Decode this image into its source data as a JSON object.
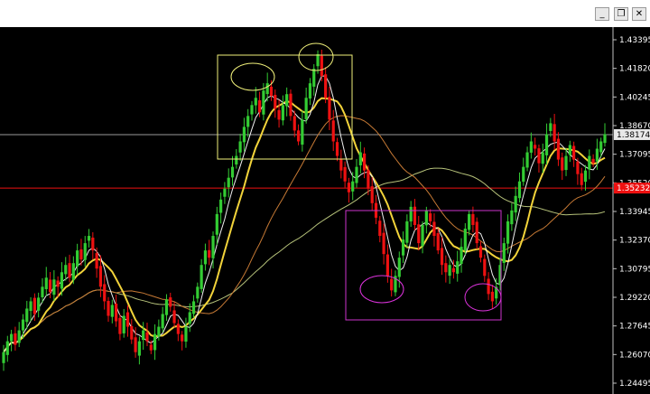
{
  "window": {
    "minimize_label": "_",
    "restore_label": "❐",
    "close_label": "✕"
  },
  "colors": {
    "background": "#000000",
    "bull": "#33cc33",
    "bear": "#ee1111",
    "ma_fast": "#f0f0f0",
    "ma_mid": "#f2d33a",
    "ma_slow": "#c77a35",
    "ma_long": "#b6c27a",
    "box_top": "#f0f07a",
    "box_bottom": "#cc33cc",
    "hline_current": "#9a9a9a",
    "hline_red": "#ee1111",
    "axis": "#c0c0c0",
    "ellipse_top": "#f0f07a",
    "ellipse_bottom": "#dd33dd"
  },
  "chart_data": {
    "type": "candlestick",
    "y_axis_ticks": [
      "1.43395",
      "1.41820",
      "1.40245",
      "1.38670",
      "1.37095",
      "1.35520",
      "1.33945",
      "1.32370",
      "1.30795",
      "1.29220",
      "1.27645",
      "1.26070",
      "1.24495"
    ],
    "ylim": [
      1.24495,
      1.43395
    ],
    "current_price": "1.38174",
    "current_price_value": 1.38174,
    "red_level": "1.35232",
    "red_level_value": 1.35232,
    "closes": [
      1.262,
      1.268,
      1.272,
      1.266,
      1.274,
      1.28,
      1.286,
      1.29,
      1.283,
      1.292,
      1.298,
      1.303,
      1.295,
      1.302,
      1.298,
      1.306,
      1.31,
      1.303,
      1.311,
      1.318,
      1.313,
      1.322,
      1.326,
      1.318,
      1.308,
      1.298,
      1.29,
      1.282,
      1.288,
      1.279,
      1.272,
      1.282,
      1.276,
      1.269,
      1.262,
      1.268,
      1.274,
      1.268,
      1.263,
      1.272,
      1.276,
      1.283,
      1.291,
      1.287,
      1.278,
      1.272,
      1.268,
      1.276,
      1.284,
      1.29,
      1.298,
      1.31,
      1.318,
      1.314,
      1.326,
      1.338,
      1.346,
      1.352,
      1.358,
      1.364,
      1.37,
      1.378,
      1.386,
      1.392,
      1.398,
      1.402,
      1.394,
      1.406,
      1.41,
      1.403,
      1.396,
      1.39,
      1.398,
      1.404,
      1.392,
      1.384,
      1.378,
      1.39,
      1.402,
      1.41,
      1.418,
      1.426,
      1.414,
      1.402,
      1.39,
      1.378,
      1.37,
      1.362,
      1.356,
      1.35,
      1.356,
      1.364,
      1.372,
      1.362,
      1.352,
      1.344,
      1.336,
      1.326,
      1.316,
      1.304,
      1.296,
      1.304,
      1.314,
      1.324,
      1.334,
      1.342,
      1.332,
      1.322,
      1.332,
      1.34,
      1.334,
      1.326,
      1.318,
      1.31,
      1.306,
      1.31,
      1.306,
      1.312,
      1.32,
      1.33,
      1.338,
      1.332,
      1.322,
      1.314,
      1.304,
      1.294,
      1.29,
      1.298,
      1.31,
      1.322,
      1.334,
      1.34,
      1.348,
      1.356,
      1.364,
      1.372,
      1.378,
      1.374,
      1.366,
      1.372,
      1.382,
      1.388,
      1.378,
      1.368,
      1.362,
      1.37,
      1.376,
      1.368,
      1.36,
      1.354,
      1.362,
      1.37,
      1.366,
      1.374,
      1.378,
      1.382
    ]
  }
}
